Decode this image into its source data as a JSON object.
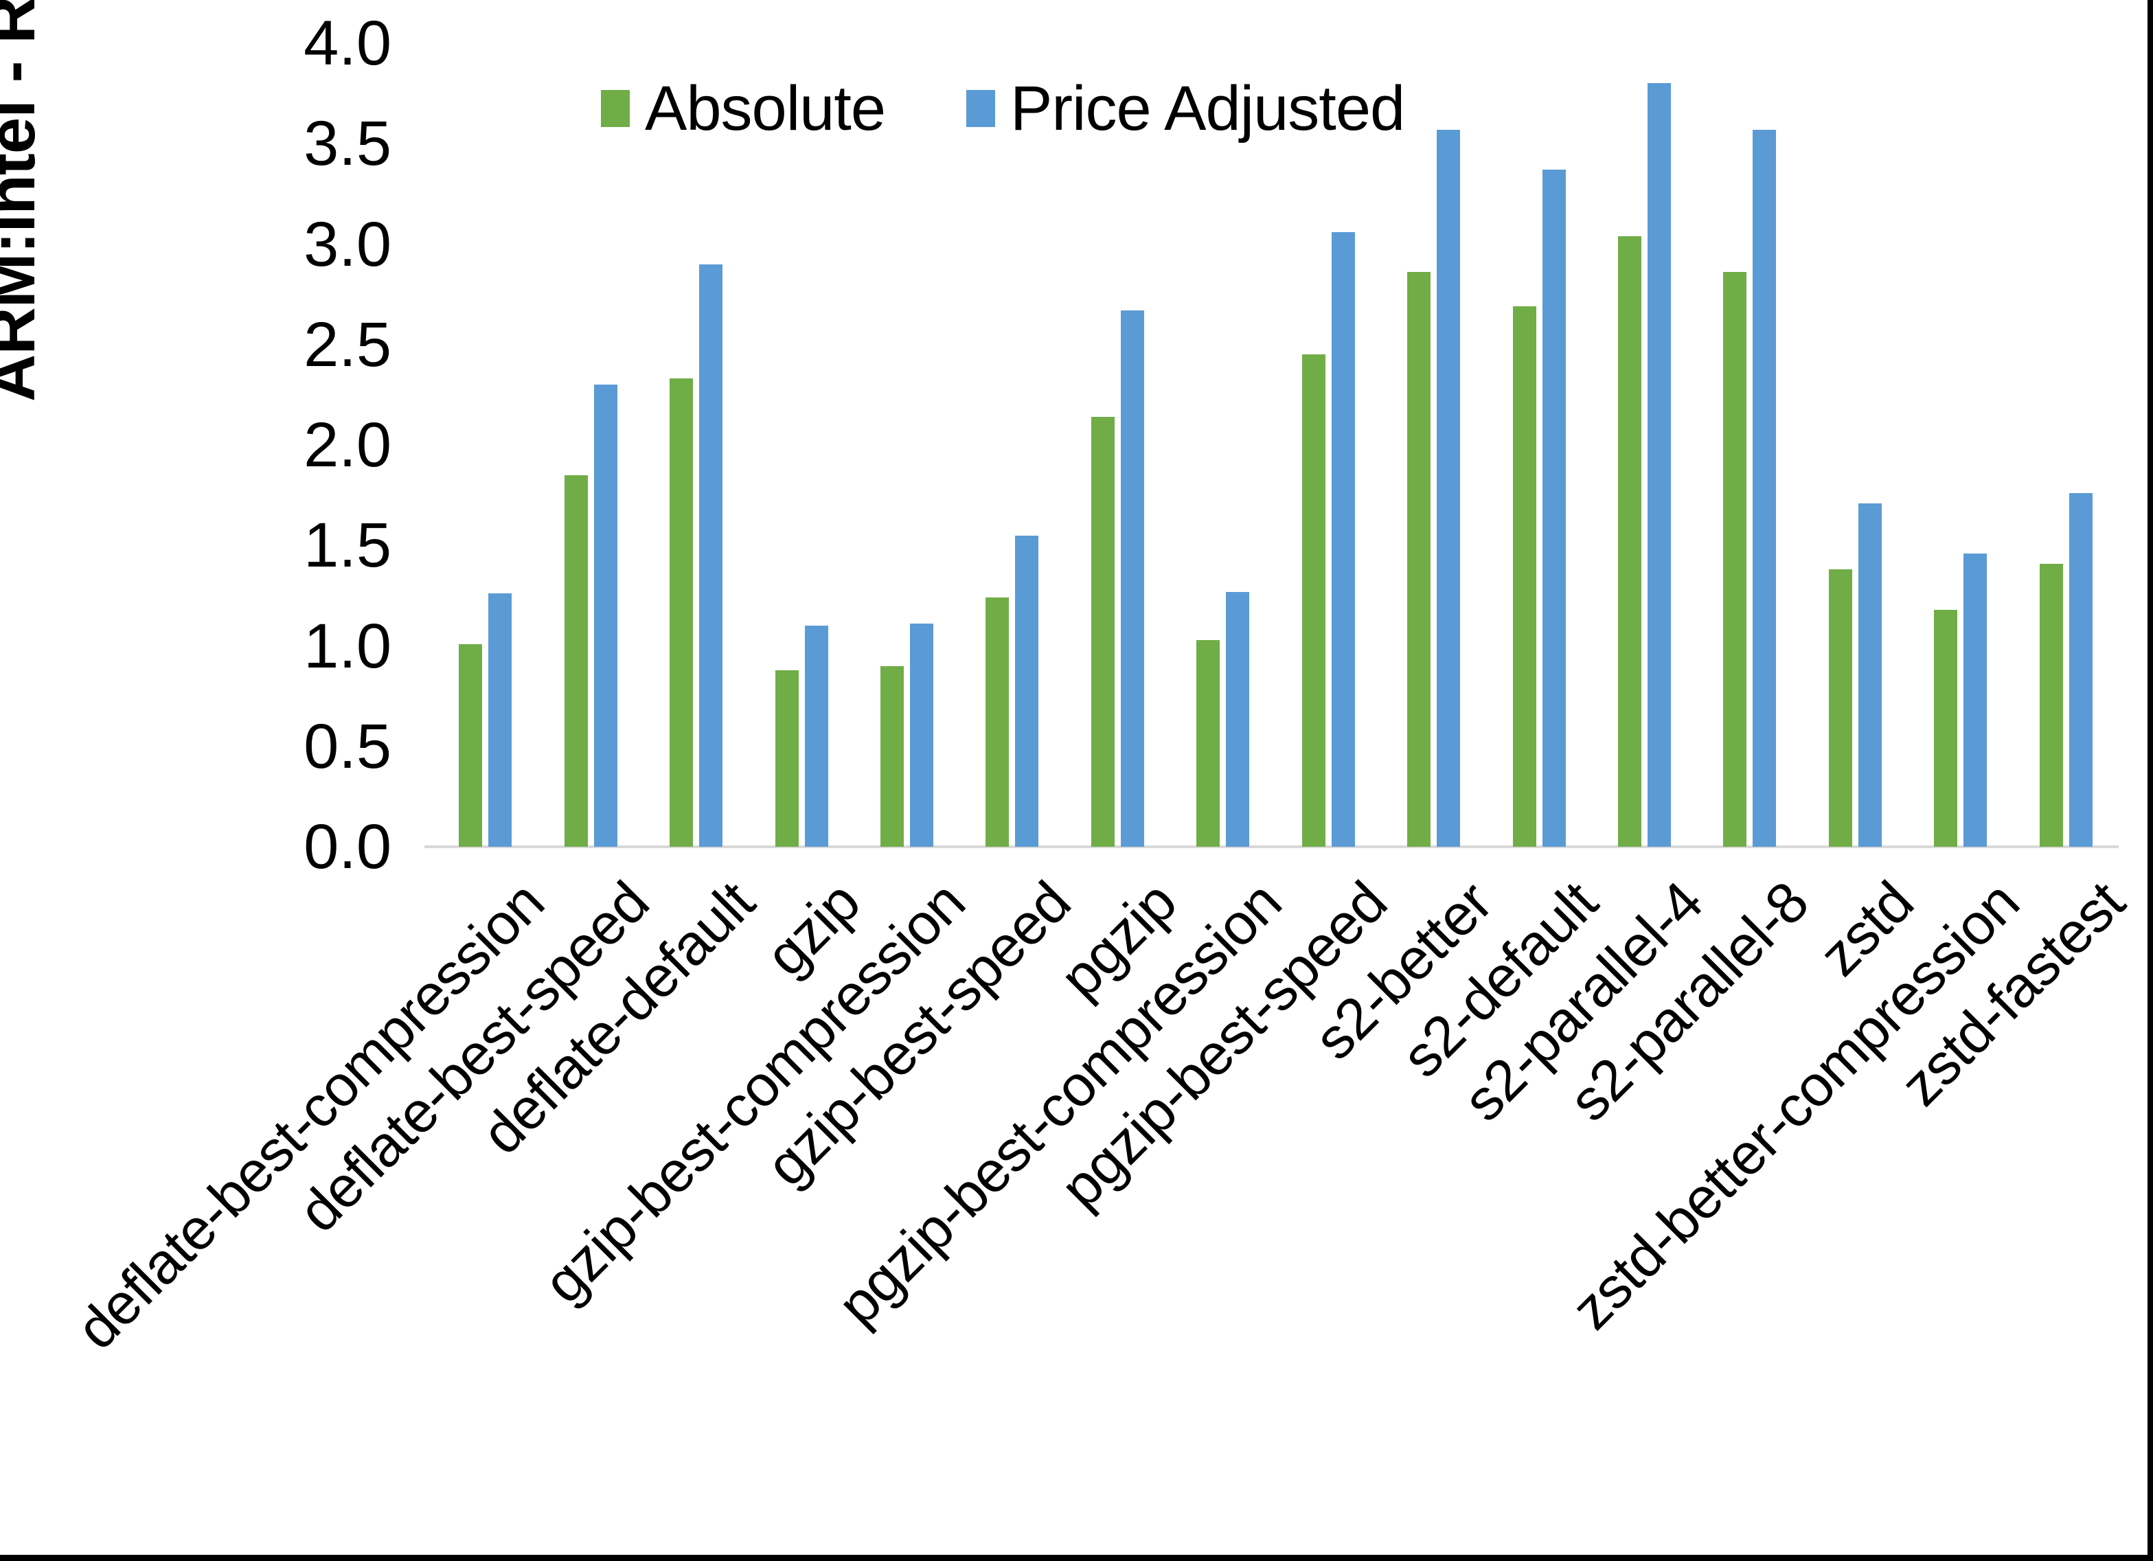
{
  "page": {
    "background": "#ffffff",
    "right_edge_color": "#000000",
    "bottom_edge_color": "#000000"
  },
  "chart_data": {
    "type": "bar",
    "title": "",
    "xlabel": "",
    "ylabel": "ARM:Intel - Relative Performance",
    "ylim": [
      0.0,
      4.0
    ],
    "ytick_step": 0.5,
    "ytick_labels": [
      "0.0",
      "0.5",
      "1.0",
      "1.5",
      "2.0",
      "2.5",
      "3.0",
      "3.5",
      "4.0"
    ],
    "grid": false,
    "axis_line_color": "#d9d9d9",
    "legend_position": "top-center",
    "categories": [
      "deflate-best-compression",
      "deflate-best-speed",
      "deflate-default",
      "gzip",
      "gzip-best-compression",
      "gzip-best-speed",
      "pgzip",
      "pgzip-best-compression",
      "pgzip-best-speed",
      "s2-better",
      "s2-default",
      "s2-parallel-4",
      "s2-parallel-8",
      "zstd",
      "zstd-better-compression",
      "zstd-fastest"
    ],
    "series": [
      {
        "name": "Absolute",
        "color": "#70ad47",
        "values": [
          1.01,
          1.85,
          2.33,
          0.88,
          0.9,
          1.24,
          2.14,
          1.03,
          2.45,
          2.86,
          2.69,
          3.04,
          2.86,
          1.38,
          1.18,
          1.41
        ]
      },
      {
        "name": "Price Adjusted",
        "color": "#5b9bd5",
        "values": [
          1.26,
          2.3,
          2.9,
          1.1,
          1.11,
          1.55,
          2.67,
          1.27,
          3.06,
          3.57,
          3.37,
          3.8,
          3.57,
          1.71,
          1.46,
          1.76
        ]
      }
    ]
  }
}
